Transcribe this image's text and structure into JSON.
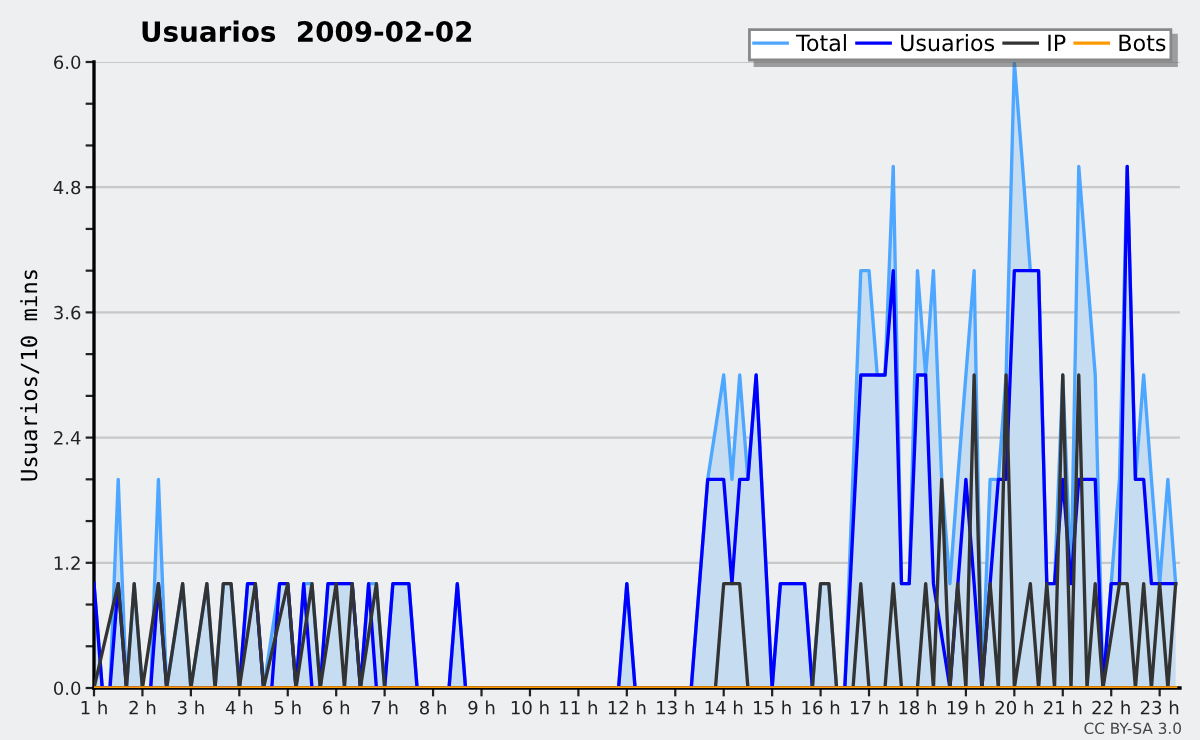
{
  "chart_data": {
    "type": "line",
    "title": "Usuarios  2009-02-02",
    "ylabel": "Usuarios/10 mins",
    "annotations": [
      "CC BY-SA 3.0"
    ],
    "xlim": [
      1,
      23.42
    ],
    "ylim": [
      0,
      6
    ],
    "xticks": [
      {
        "value": 1,
        "label": "1 h"
      },
      {
        "value": 2,
        "label": "2 h"
      },
      {
        "value": 3,
        "label": "3 h"
      },
      {
        "value": 4,
        "label": "4 h"
      },
      {
        "value": 5,
        "label": "5 h"
      },
      {
        "value": 6,
        "label": "6 h"
      },
      {
        "value": 7,
        "label": "7 h"
      },
      {
        "value": 8,
        "label": "8 h"
      },
      {
        "value": 9,
        "label": "9 h"
      },
      {
        "value": 10,
        "label": "10 h"
      },
      {
        "value": 11,
        "label": "11 h"
      },
      {
        "value": 12,
        "label": "12 h"
      },
      {
        "value": 13,
        "label": "13 h"
      },
      {
        "value": 14,
        "label": "14 h"
      },
      {
        "value": 15,
        "label": "15 h"
      },
      {
        "value": 16,
        "label": "16 h"
      },
      {
        "value": 17,
        "label": "17 h"
      },
      {
        "value": 18,
        "label": "18 h"
      },
      {
        "value": 19,
        "label": "19 h"
      },
      {
        "value": 20,
        "label": "20 h"
      },
      {
        "value": 21,
        "label": "21 h"
      },
      {
        "value": 22,
        "label": "22 h"
      },
      {
        "value": 23,
        "label": "23 h"
      }
    ],
    "yticks": [
      {
        "value": 0,
        "label": "0.0"
      },
      {
        "value": 0.4,
        "label": null
      },
      {
        "value": 0.8,
        "label": null
      },
      {
        "value": 1.2,
        "label": "1.2"
      },
      {
        "value": 1.6,
        "label": null
      },
      {
        "value": 2.0,
        "label": null
      },
      {
        "value": 2.4,
        "label": "2.4"
      },
      {
        "value": 2.8,
        "label": null
      },
      {
        "value": 3.2,
        "label": null
      },
      {
        "value": 3.6,
        "label": "3.6"
      },
      {
        "value": 4.0,
        "label": null
      },
      {
        "value": 4.4,
        "label": null
      },
      {
        "value": 4.8,
        "label": "4.8"
      },
      {
        "value": 5.2,
        "label": null
      },
      {
        "value": 5.6,
        "label": null
      },
      {
        "value": 6.0,
        "label": "6.0"
      }
    ],
    "grid": "y",
    "legend": "top right",
    "series": [
      {
        "name": "Total",
        "type": "area",
        "color": "#4da6ff",
        "x": [
          1,
          1.17,
          1.33,
          1.5,
          1.67,
          1.83,
          2,
          2.17,
          2.33,
          2.5,
          2.83,
          3,
          3.33,
          3.5,
          3.67,
          3.83,
          4,
          4.17,
          4.33,
          4.5,
          4.83,
          5,
          5.17,
          5.33,
          5.5,
          5.67,
          5.83,
          6,
          6.17,
          6.33,
          6.5,
          6.67,
          6.83,
          7,
          7.17,
          7.5,
          7.67,
          8.33,
          8.5,
          8.67,
          11.83,
          12,
          12.17,
          13.33,
          13.67,
          14,
          14.17,
          14.33,
          14.5,
          14.67,
          15,
          15.17,
          15.67,
          15.83,
          16,
          16.17,
          16.33,
          16.5,
          16.83,
          17,
          17.17,
          17.33,
          17.5,
          17.67,
          17.83,
          18,
          18.17,
          18.33,
          18.5,
          18.67,
          18.83,
          19,
          19.17,
          19.33,
          19.5,
          19.67,
          19.83,
          20,
          20.17,
          20.33,
          20.5,
          20.67,
          20.83,
          21,
          21.17,
          21.33,
          21.5,
          21.67,
          21.83,
          22,
          22.17,
          22.33,
          22.5,
          22.67,
          22.83,
          23,
          23.17,
          23.33
        ],
        "values": [
          1,
          0,
          0,
          2,
          0,
          1,
          0,
          0,
          2,
          0,
          1,
          0,
          1,
          0,
          1,
          1,
          0,
          1,
          1,
          0,
          1,
          1,
          0,
          1,
          1,
          0,
          1,
          1,
          1,
          1,
          0,
          1,
          1,
          0,
          1,
          1,
          0,
          0,
          1,
          0,
          0,
          1,
          0,
          0,
          2,
          3,
          2,
          3,
          2,
          3,
          0,
          1,
          1,
          0,
          1,
          1,
          0,
          0,
          4,
          4,
          3,
          3,
          5,
          1,
          1,
          4,
          3,
          4,
          2,
          1,
          2,
          3,
          4,
          0,
          2,
          2,
          3,
          6,
          5,
          4,
          4,
          1,
          1,
          3,
          1,
          5,
          4,
          3,
          0,
          1,
          2,
          5,
          2,
          3,
          2,
          1,
          2,
          1
        ]
      },
      {
        "name": "Usuarios",
        "color": "#0000ff",
        "x": [
          1,
          1.17,
          1.33,
          1.5,
          1.67,
          2.17,
          2.33,
          2.5,
          4,
          4.17,
          4.33,
          4.5,
          4.67,
          4.83,
          5,
          5.17,
          5.33,
          5.5,
          5.67,
          5.83,
          6.33,
          6.5,
          6.67,
          6.83,
          7,
          7.17,
          7.5,
          7.67,
          8.33,
          8.5,
          8.67,
          11.83,
          12,
          12.17,
          13.33,
          13.67,
          14,
          14.17,
          14.33,
          14.5,
          14.67,
          15,
          15.17,
          15.67,
          15.83,
          16.5,
          16.83,
          17.33,
          17.5,
          17.67,
          17.83,
          18,
          18.17,
          18.33,
          18.67,
          19,
          19.17,
          19.33,
          19.67,
          19.83,
          20,
          20.5,
          20.67,
          20.83,
          21,
          21.17,
          21.33,
          21.5,
          21.67,
          21.83,
          22,
          22.17,
          22.33,
          22.5,
          22.67,
          22.83,
          23.33
        ],
        "values": [
          1,
          0,
          0,
          1,
          0,
          0,
          1,
          0,
          0,
          1,
          1,
          0,
          0,
          1,
          1,
          0,
          1,
          0,
          0,
          1,
          1,
          0,
          1,
          0,
          0,
          1,
          1,
          0,
          0,
          1,
          0,
          0,
          1,
          0,
          0,
          2,
          2,
          1,
          2,
          2,
          3,
          0,
          1,
          1,
          0,
          0,
          3,
          3,
          4,
          1,
          1,
          3,
          3,
          1,
          0,
          2,
          1,
          0,
          2,
          2,
          4,
          4,
          1,
          1,
          2,
          1,
          2,
          2,
          2,
          0,
          1,
          1,
          5,
          2,
          2,
          1,
          1
        ]
      },
      {
        "name": "IP",
        "color": "#333333",
        "x": [
          1,
          1.5,
          1.67,
          1.83,
          2,
          2.33,
          2.5,
          2.83,
          3,
          3.33,
          3.5,
          3.67,
          3.83,
          4,
          4.33,
          4.5,
          5,
          5.17,
          5.5,
          5.67,
          6,
          6.17,
          6.33,
          6.5,
          6.83,
          7,
          13.83,
          14,
          14.33,
          14.5,
          15.83,
          16,
          16.17,
          16.33,
          16.67,
          16.83,
          17,
          17.33,
          17.5,
          17.67,
          18,
          18.17,
          18.33,
          18.5,
          18.67,
          18.83,
          19,
          19.17,
          19.33,
          19.5,
          19.67,
          19.83,
          20,
          20.33,
          20.5,
          20.67,
          20.83,
          21,
          21.17,
          21.33,
          21.5,
          21.67,
          21.83,
          22.17,
          22.33,
          22.5,
          22.67,
          22.83,
          23,
          23.17,
          23.33
        ],
        "values": [
          0,
          1,
          0,
          1,
          0,
          1,
          0,
          1,
          0,
          1,
          0,
          1,
          1,
          0,
          1,
          0,
          1,
          0,
          1,
          0,
          1,
          0,
          1,
          0,
          1,
          0,
          0,
          1,
          1,
          0,
          0,
          1,
          1,
          0,
          0,
          1,
          0,
          0,
          1,
          0,
          0,
          1,
          0,
          2,
          0,
          1,
          0,
          3,
          0,
          1,
          0,
          3,
          0,
          1,
          0,
          1,
          0,
          3,
          0,
          3,
          0,
          1,
          0,
          1,
          1,
          0,
          1,
          0,
          1,
          0,
          1
        ]
      },
      {
        "name": "Bots",
        "color": "#ff9900",
        "x": [
          1,
          23.33
        ],
        "values": [
          0,
          0
        ]
      }
    ]
  }
}
